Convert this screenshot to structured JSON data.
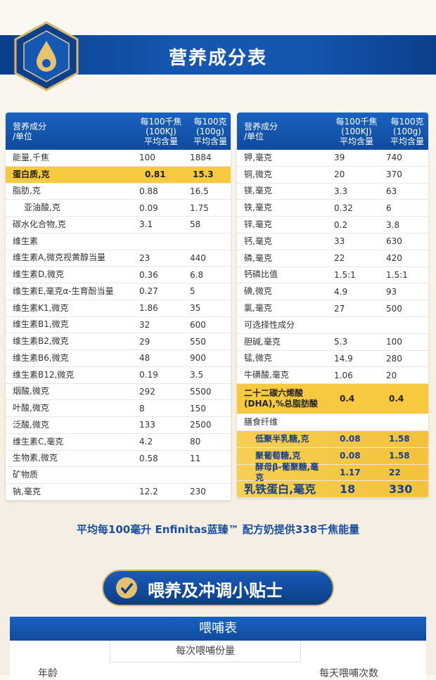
{
  "header": {
    "title": "营养成分表"
  },
  "left_table": {
    "columns": [
      [
        "营养成分",
        "/单位"
      ],
      [
        "每100千焦",
        "(100KJ)",
        "平均含量"
      ],
      [
        "每100克",
        "(100g)",
        "平均含量"
      ]
    ],
    "rows": [
      {
        "name": "能量,千焦",
        "per_kj": "100",
        "per_100g": "1884"
      },
      {
        "name": "蛋白质,克",
        "per_kj": "0.81",
        "per_100g": "15.3",
        "highlight": "yellow"
      },
      {
        "name": "脂肪,克",
        "per_kj": "0.88",
        "per_100g": "16.5"
      },
      {
        "name": "亚油酸,克",
        "per_kj": "0.09",
        "per_100g": "1.75",
        "indent": true
      },
      {
        "name": "碳水化合物,克",
        "per_kj": "3.1",
        "per_100g": "58"
      },
      {
        "name": "维生素"
      },
      {
        "name": "维生素A,微克视黄醇当量",
        "per_kj": "23",
        "per_100g": "440"
      },
      {
        "name": "维生素D,微克",
        "per_kj": "0.36",
        "per_100g": "6.8"
      },
      {
        "name": "维生素E,毫克α-生育酚当量",
        "per_kj": "0.27",
        "per_100g": "5"
      },
      {
        "name": "维生素K1,微克",
        "per_kj": "1.86",
        "per_100g": "35"
      },
      {
        "name": "维生素B1,微克",
        "per_kj": "32",
        "per_100g": "600"
      },
      {
        "name": "维生素B2,微克",
        "per_kj": "29",
        "per_100g": "550"
      },
      {
        "name": "维生素B6,微克",
        "per_kj": "48",
        "per_100g": "900"
      },
      {
        "name": "维生素B12,微克",
        "per_kj": "0.19",
        "per_100g": "3.5"
      },
      {
        "name": "烟酸,微克",
        "per_kj": "292",
        "per_100g": "5500"
      },
      {
        "name": "叶酸,微克",
        "per_kj": "8",
        "per_100g": "150"
      },
      {
        "name": "泛酸,微克",
        "per_kj": "133",
        "per_100g": "2500"
      },
      {
        "name": "维生素C,毫克",
        "per_kj": "4.2",
        "per_100g": "80"
      },
      {
        "name": "生物素,微克",
        "per_kj": "0.58",
        "per_100g": "11"
      },
      {
        "name": "矿物质"
      },
      {
        "name": "钠,毫克",
        "per_kj": "12.2",
        "per_100g": "230"
      }
    ]
  },
  "right_table": {
    "columns": [
      [
        "营养成分",
        "/单位"
      ],
      [
        "每100千焦",
        "(100KJ)",
        "平均含量"
      ],
      [
        "每100克",
        "(100g)",
        "平均含量"
      ]
    ],
    "rows": [
      {
        "name": "钾,毫克",
        "per_kj": "39",
        "per_100g": "740"
      },
      {
        "name": "铜,微克",
        "per_kj": "20",
        "per_100g": "370"
      },
      {
        "name": "镁,毫克",
        "per_kj": "3.3",
        "per_100g": "63"
      },
      {
        "name": "铁,毫克",
        "per_kj": "0.32",
        "per_100g": "6"
      },
      {
        "name": "锌,毫克",
        "per_kj": "0.2",
        "per_100g": "3.8"
      },
      {
        "name": "钙,毫克",
        "per_kj": "33",
        "per_100g": "630"
      },
      {
        "name": "磷,毫克",
        "per_kj": "22",
        "per_100g": "420"
      },
      {
        "name": "钙磷比值",
        "per_kj": "1.5:1",
        "per_100g": "1.5:1"
      },
      {
        "name": "碘,微克",
        "per_kj": "4.9",
        "per_100g": "93"
      },
      {
        "name": "氯,毫克",
        "per_kj": "27",
        "per_100g": "500"
      },
      {
        "name": "可选择性成分"
      },
      {
        "name": "胆碱,毫克",
        "per_kj": "5.3",
        "per_100g": "100"
      },
      {
        "name": "锰,微克",
        "per_kj": "14.9",
        "per_100g": "280"
      },
      {
        "name": "牛磺酸,毫克",
        "per_kj": "1.06",
        "per_100g": "20"
      },
      {
        "name": "二十二碳六烯酸\n(DHA),%总脂肪酸",
        "per_kj": "0.4",
        "per_100g": "0.4",
        "highlight": "yellow",
        "tall": true
      },
      {
        "name": "膳食纤维"
      },
      {
        "name": "低聚半乳糖,克",
        "per_kj": "0.08",
        "per_100g": "1.58",
        "highlight": "gold",
        "indent": true
      },
      {
        "name": "聚葡萄糖,克",
        "per_kj": "0.08",
        "per_100g": "1.58",
        "highlight": "gold",
        "indent": true
      },
      {
        "name": "酵母β-葡聚糖,毫克",
        "per_kj": "1.17",
        "per_100g": "22",
        "highlight": "gold",
        "indent": true
      },
      {
        "name": "乳铁蛋白,毫克",
        "per_kj": "18",
        "per_100g": "330",
        "highlight": "gold",
        "big": true
      }
    ]
  },
  "footnote": "平均每100毫升 Enfinitas蓝臻™ 配方奶提供338千焦能量",
  "tips": {
    "title": "喂养及冲调小贴士",
    "table_title": "喂哺表",
    "col_portion": "每次喂哺份量",
    "col_age": "年龄",
    "col_times": "每天喂哺次数"
  }
}
